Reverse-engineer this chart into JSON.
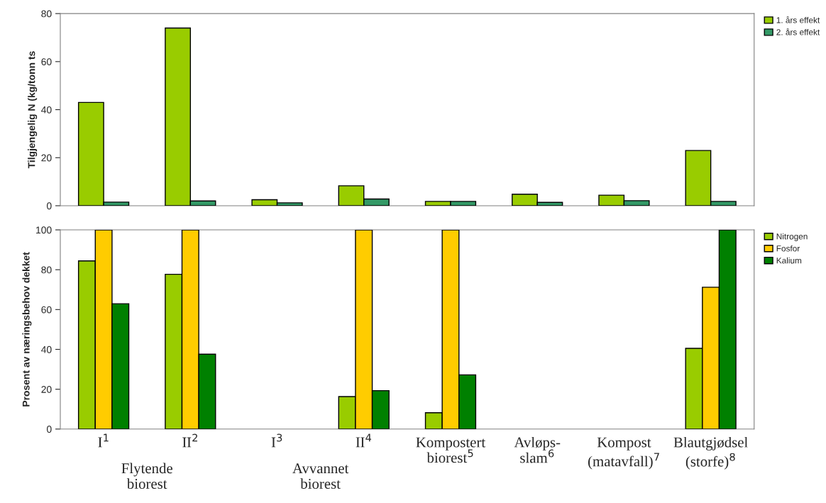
{
  "chart_data": [
    {
      "type": "bar",
      "ylabel": "Tilgjengelig N (kg/tonn ts",
      "categories": [
        null,
        null,
        null,
        null,
        null,
        null,
        null,
        null
      ],
      "tick_labels": "y",
      "ylim": [
        0,
        80
      ],
      "yticks": [
        0,
        20,
        40,
        60,
        80
      ],
      "grid": false,
      "legend": "top right",
      "series": [
        {
          "name": "1. års effekt",
          "color": "#99cc00",
          "values": [
            43,
            74,
            2.5,
            8.3,
            1.8,
            4.8,
            4.4,
            23
          ]
        },
        {
          "name": "2. års effekt",
          "color": "#339966",
          "values": [
            1.5,
            2,
            1.2,
            2.8,
            1.8,
            1.4,
            2.1,
            1.8
          ]
        }
      ]
    },
    {
      "type": "bar",
      "ylabel": "Prosent av næringsbehov dekket",
      "categories": [
        "I$^{1}$",
        "II$^{2}$",
        "I$^{3}$",
        "II$^{4}$",
        "Kompostert\nbiorest$^{5}$",
        "Avløps-\nslam$^{6}$",
        "Kompost\n(matavfall)$^{7}$",
        "Blautgjødsel\n(storfe)$^{8}$"
      ],
      "ylim": [
        0,
        100
      ],
      "yticks": [
        0,
        20,
        40,
        60,
        80,
        100
      ],
      "grid": false,
      "legend": "top right",
      "annotations": [
        "Flytende\nbiorest",
        "Avvannet\nbiorest"
      ],
      "series": [
        {
          "name": "Nitrogen",
          "color": "#99cc00",
          "values": [
            84.4,
            77.7,
            null,
            16.3,
            8.2,
            null,
            null,
            40.5
          ]
        },
        {
          "name": "Fosfor",
          "color": "#ffcc00",
          "values": [
            100,
            100,
            null,
            100,
            100,
            null,
            null,
            71.2
          ]
        },
        {
          "name": "Kalium",
          "color": "#008000",
          "values": [
            62.9,
            37.6,
            null,
            19.3,
            27.2,
            null,
            null,
            100
          ]
        }
      ]
    }
  ]
}
